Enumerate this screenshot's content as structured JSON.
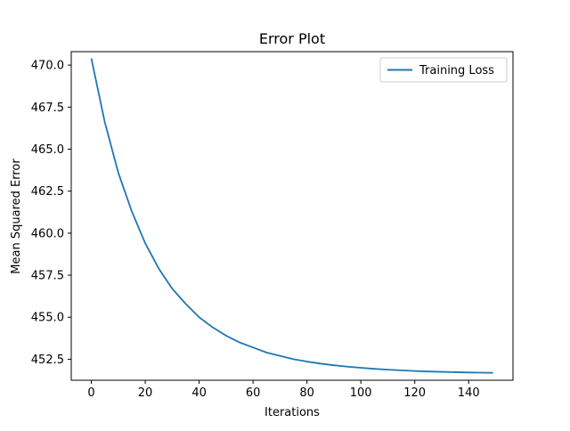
{
  "chart_data": {
    "type": "line",
    "title": "Error Plot",
    "xlabel": "Iterations",
    "ylabel": "Mean Squared Error",
    "xlim": [
      -7.45,
      156.45
    ],
    "ylim": [
      451.25,
      470.8
    ],
    "xticks": [
      0,
      20,
      40,
      60,
      80,
      100,
      120,
      140
    ],
    "xtick_labels": [
      "0",
      "20",
      "40",
      "60",
      "80",
      "100",
      "120",
      "140"
    ],
    "yticks": [
      452.5,
      455.0,
      457.5,
      460.0,
      462.5,
      465.0,
      467.5,
      470.0
    ],
    "ytick_labels": [
      "452.5",
      "455.0",
      "457.5",
      "460.0",
      "462.5",
      "465.0",
      "467.5",
      "470.0"
    ],
    "grid": false,
    "legend_position": "upper right",
    "series": [
      {
        "name": "Training Loss",
        "color": "#1f77b4",
        "x": [
          0,
          5,
          10,
          15,
          20,
          25,
          30,
          35,
          40,
          45,
          50,
          55,
          60,
          65,
          70,
          75,
          80,
          85,
          90,
          95,
          100,
          105,
          110,
          115,
          120,
          125,
          130,
          135,
          140,
          145,
          149
        ],
        "y": [
          470.4,
          466.6,
          463.6,
          461.3,
          459.4,
          457.9,
          456.7,
          455.8,
          455.0,
          454.4,
          453.9,
          453.5,
          453.2,
          452.9,
          452.7,
          452.5,
          452.36,
          452.24,
          452.14,
          452.06,
          451.99,
          451.93,
          451.88,
          451.84,
          451.8,
          451.77,
          451.75,
          451.73,
          451.71,
          451.7,
          451.69
        ]
      }
    ]
  }
}
